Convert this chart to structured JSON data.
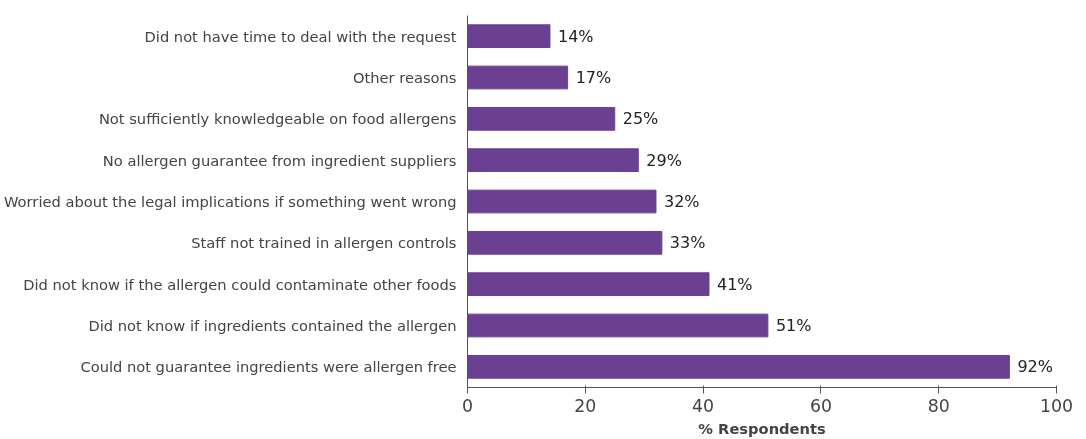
{
  "chart_data": {
    "type": "bar",
    "orientation": "horizontal",
    "xlabel": "% Respondents",
    "categories": [
      "Did not have time to deal with the request",
      "Other reasons",
      "Not sufficiently knowledgeable on food allergens",
      "No allergen guarantee from ingredient suppliers",
      "Worried about the legal implications if something went wrong",
      "Staff not trained in allergen controls",
      "Did not know if the allergen could contaminate other foods",
      "Did not know if ingredients contained the allergen",
      "Could not guarantee ingredients were allergen free"
    ],
    "values": [
      14,
      17,
      25,
      29,
      32,
      33,
      41,
      51,
      92
    ],
    "value_labels": [
      "14%",
      "17%",
      "25%",
      "29%",
      "32%",
      "33%",
      "41%",
      "51%",
      "92%"
    ],
    "color": "#6b3f92",
    "xlim": [
      0,
      100
    ],
    "xticks": [
      0,
      20,
      40,
      60,
      80,
      100
    ],
    "grid": false
  }
}
